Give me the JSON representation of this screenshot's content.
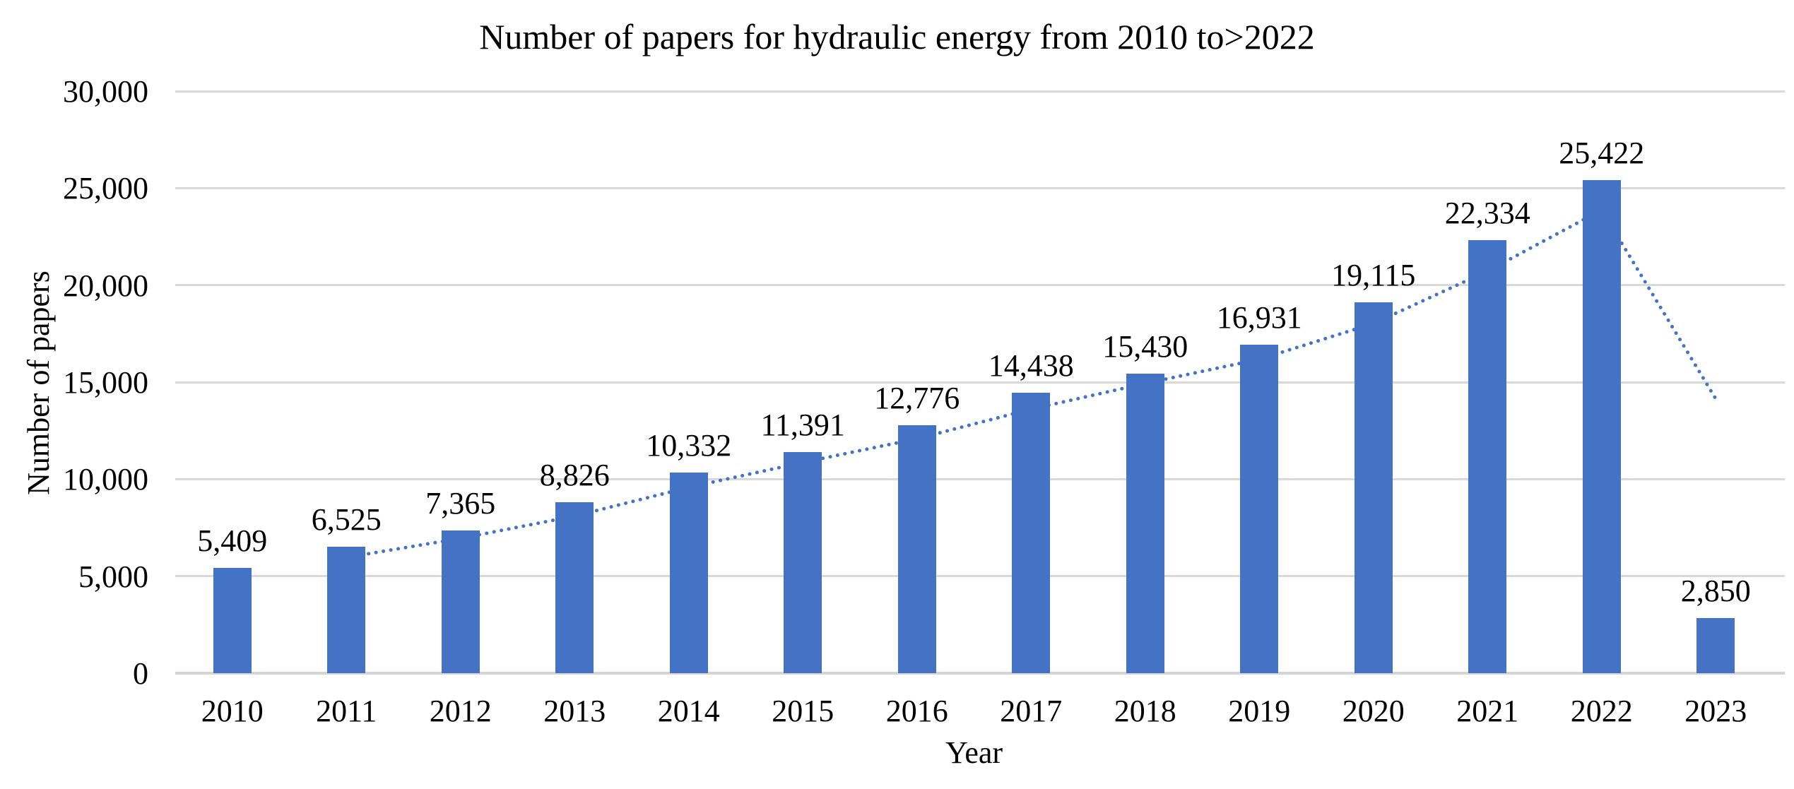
{
  "chart_data": {
    "type": "bar",
    "title": "Number of papers for hydraulic energy from 2010 to>2022",
    "xlabel": "Year",
    "ylabel": "Number of papers",
    "categories": [
      "2010",
      "2011",
      "2012",
      "2013",
      "2014",
      "2015",
      "2016",
      "2017",
      "2018",
      "2019",
      "2020",
      "2021",
      "2022",
      "2023"
    ],
    "values": [
      5409,
      6525,
      7365,
      8826,
      10332,
      11391,
      12776,
      14438,
      15430,
      16931,
      19115,
      22334,
      25422,
      2850
    ],
    "value_labels": [
      "5,409",
      "6,525",
      "7,365",
      "8,826",
      "10,332",
      "11,391",
      "12,776",
      "14,438",
      "15,430",
      "16,931",
      "19,115",
      "22,334",
      "25,422",
      "2,850"
    ],
    "ylim": [
      0,
      30000
    ],
    "y_ticks": [
      0,
      5000,
      10000,
      15000,
      20000,
      25000,
      30000
    ],
    "y_tick_labels": [
      "0",
      "5,000",
      "10,000",
      "15,000",
      "20,000",
      "25,000",
      "30,000"
    ],
    "grid": "horizontal",
    "legend": "none",
    "bar_color": "#4472C4",
    "gridline_color": "#d9d9d9",
    "trendline": {
      "type": "2-period moving average",
      "style": "dotted",
      "color": "#4472C4",
      "x": [
        "2011",
        "2012",
        "2013",
        "2014",
        "2015",
        "2016",
        "2017",
        "2018",
        "2019",
        "2020",
        "2021",
        "2022",
        "2023"
      ],
      "values": [
        5967,
        6945,
        8095.5,
        9579,
        10861.5,
        12083.5,
        13607,
        14934,
        16180.5,
        18023,
        20724.5,
        23878,
        14136
      ]
    }
  }
}
